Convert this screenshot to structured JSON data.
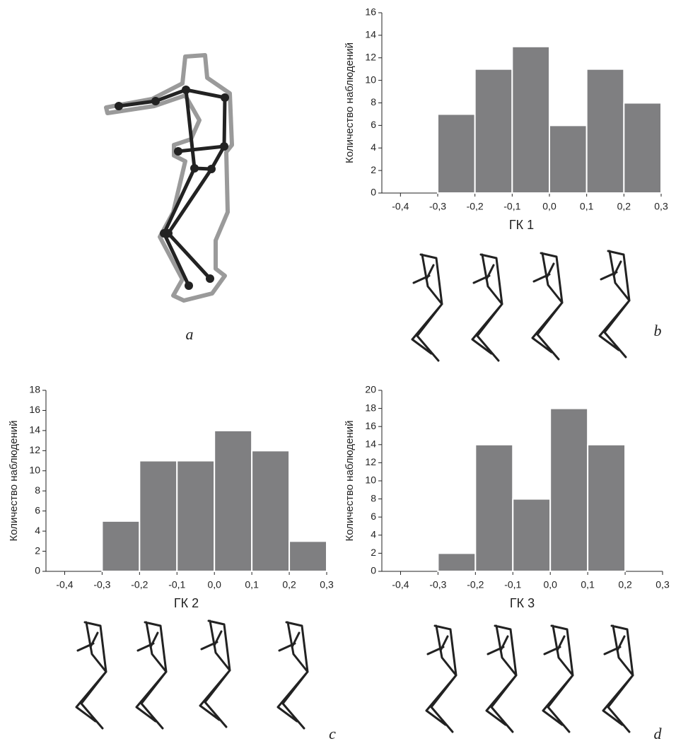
{
  "figure": {
    "panel_label": "a"
  },
  "chart_data": [
    {
      "type": "histogram",
      "panel_label": "b",
      "xlabel": "ГК 1",
      "ylabel": "Количество наблюдений",
      "color": "#7f7f81",
      "bins": [
        -0.3,
        -0.2,
        -0.1,
        0.0,
        0.1,
        0.2,
        0.3
      ],
      "values": [
        7,
        11,
        13,
        6,
        11,
        8
      ],
      "xlim": [
        -0.45,
        0.3
      ],
      "ylim": [
        0,
        16
      ],
      "xticks": [
        {
          "value": -0.4,
          "label": "-0,4"
        },
        {
          "value": -0.3,
          "label": "-0,3"
        },
        {
          "value": -0.2,
          "label": "-0,2"
        },
        {
          "value": -0.1,
          "label": "-0,1"
        },
        {
          "value": 0.0,
          "label": "0,0"
        },
        {
          "value": 0.1,
          "label": "0,1"
        },
        {
          "value": 0.2,
          "label": "0,2"
        },
        {
          "value": 0.3,
          "label": "0,3"
        }
      ],
      "yticks": [
        0,
        2,
        4,
        6,
        8,
        10,
        12,
        14,
        16
      ]
    },
    {
      "type": "histogram",
      "panel_label": "c",
      "xlabel": "ГК 2",
      "ylabel": "Количество наблюдений",
      "color": "#7f7f81",
      "bins": [
        -0.3,
        -0.2,
        -0.1,
        0.0,
        0.1,
        0.2,
        0.3
      ],
      "values": [
        5,
        11,
        11,
        14,
        12,
        3
      ],
      "xlim": [
        -0.45,
        0.3
      ],
      "ylim": [
        0,
        18
      ],
      "xticks": [
        {
          "value": -0.4,
          "label": "-0,4"
        },
        {
          "value": -0.3,
          "label": "-0,3"
        },
        {
          "value": -0.2,
          "label": "-0,2"
        },
        {
          "value": -0.1,
          "label": "-0,1"
        },
        {
          "value": 0.0,
          "label": "0,0"
        },
        {
          "value": 0.1,
          "label": "0,1"
        },
        {
          "value": 0.2,
          "label": "0,2"
        },
        {
          "value": 0.3,
          "label": "0,3"
        }
      ],
      "yticks": [
        0,
        2,
        4,
        6,
        8,
        10,
        12,
        14,
        16,
        18
      ]
    },
    {
      "type": "histogram",
      "panel_label": "d",
      "xlabel": "ГК 3",
      "ylabel": "Количество наблюдений",
      "color": "#7f7f81",
      "bins": [
        -0.3,
        -0.2,
        -0.1,
        0.0,
        0.1,
        0.2
      ],
      "values": [
        2,
        14,
        8,
        18,
        14
      ],
      "xlim": [
        -0.45,
        0.3
      ],
      "ylim": [
        0,
        20
      ],
      "xticks": [
        {
          "value": -0.4,
          "label": "-0,4"
        },
        {
          "value": -0.3,
          "label": "-0,3"
        },
        {
          "value": -0.2,
          "label": "-0,2"
        },
        {
          "value": -0.1,
          "label": "-0,1"
        },
        {
          "value": 0.0,
          "label": "0,0"
        },
        {
          "value": 0.1,
          "label": "0,1"
        },
        {
          "value": 0.2,
          "label": "0,2"
        },
        {
          "value": 0.3,
          "label": "0,3"
        }
      ],
      "yticks": [
        0,
        2,
        4,
        6,
        8,
        10,
        12,
        14,
        16,
        18,
        20
      ]
    }
  ]
}
